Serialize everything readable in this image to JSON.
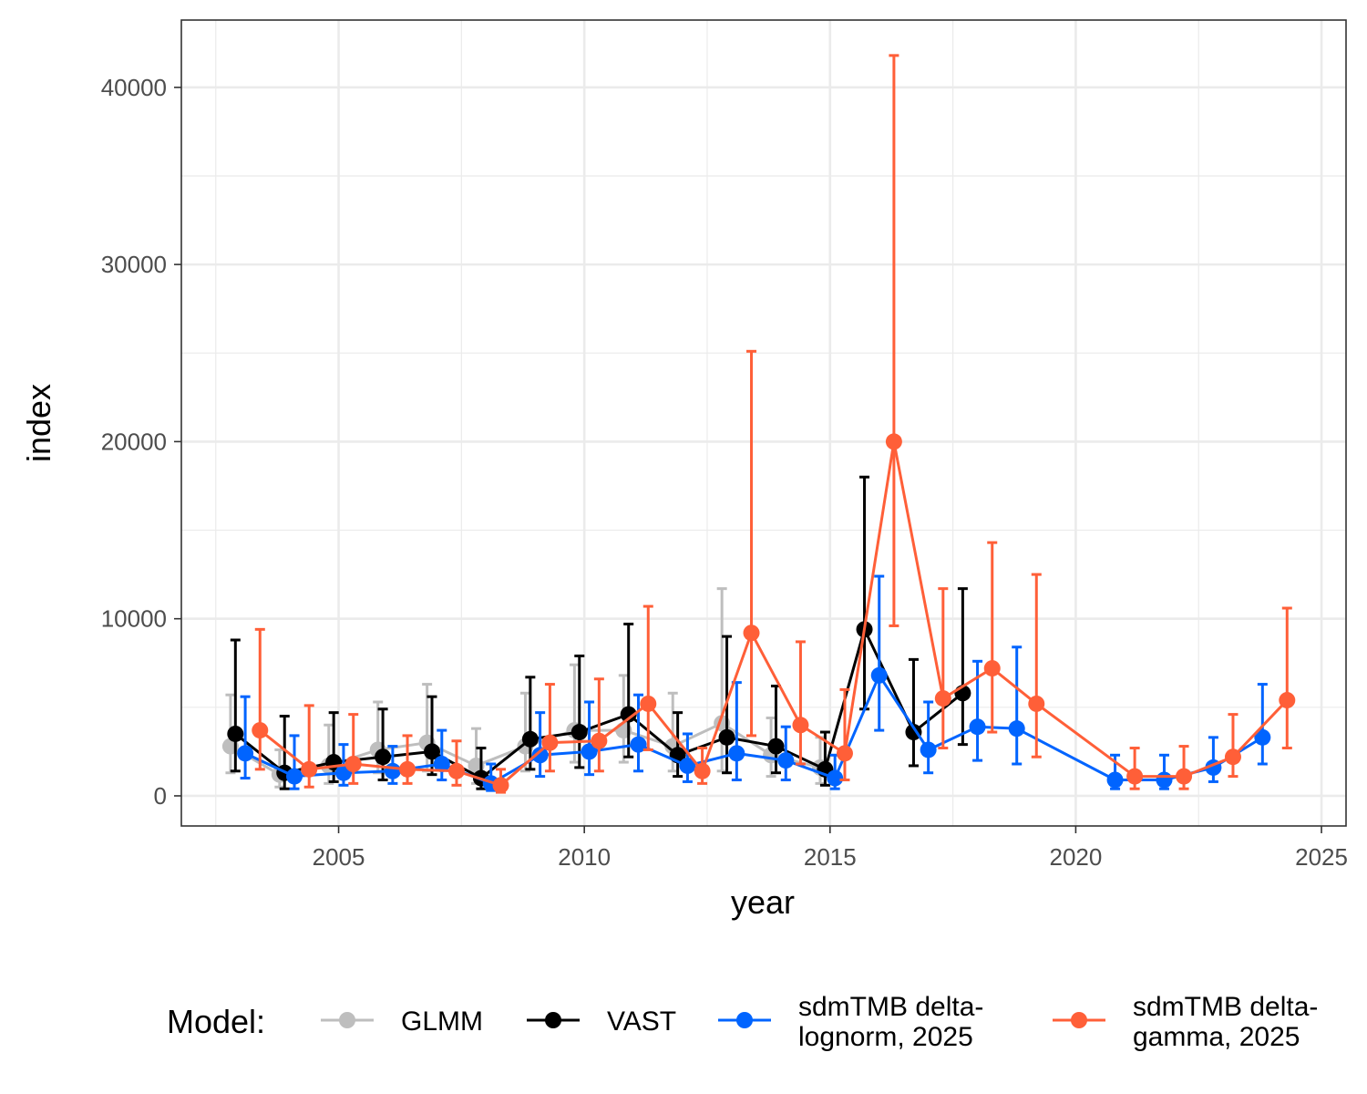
{
  "chart_data": {
    "type": "line",
    "xlabel": "year",
    "ylabel": "index",
    "xlim": [
      2001.8,
      2025.5
    ],
    "ylim": [
      -1700,
      43800
    ],
    "x_ticks": [
      2005,
      2010,
      2015,
      2020,
      2025
    ],
    "y_ticks": [
      0,
      10000,
      20000,
      30000,
      40000
    ],
    "grid": true,
    "legend_position": "bottom",
    "legend_title": "Model:",
    "series": [
      {
        "name": "GLMM",
        "color": "#bebebe",
        "x": [
          2002.8,
          2003.8,
          2004.8,
          2005.8,
          2006.8,
          2007.8,
          2008.8,
          2009.8,
          2010.8,
          2011.8,
          2012.8,
          2013.8,
          2014.8
        ],
        "y": [
          2800,
          1200,
          1700,
          2600,
          3000,
          1700,
          2800,
          3700,
          3700,
          2800,
          4100,
          2300,
          1600
        ],
        "lower": [
          1300,
          500,
          700,
          1300,
          1400,
          700,
          1400,
          1900,
          1900,
          1400,
          1400,
          1100,
          700
        ],
        "upper": [
          5700,
          2600,
          4000,
          5300,
          6300,
          3800,
          5800,
          7400,
          6800,
          5800,
          11700,
          4400,
          3300
        ]
      },
      {
        "name": "VAST",
        "color": "#000000",
        "x": [
          2002.9,
          2003.9,
          2004.9,
          2005.9,
          2006.9,
          2007.9,
          2008.9,
          2009.9,
          2010.9,
          2011.9,
          2012.9,
          2013.9,
          2014.9,
          2015.7,
          2016.7,
          2017.7
        ],
        "y": [
          3500,
          1300,
          1900,
          2200,
          2500,
          1000,
          3200,
          3600,
          4600,
          2300,
          3300,
          2800,
          1500,
          9400,
          3600,
          5800
        ],
        "lower": [
          1400,
          400,
          800,
          900,
          1200,
          400,
          1500,
          1600,
          2200,
          1100,
          1300,
          1300,
          600,
          4900,
          1700,
          2900
        ],
        "upper": [
          8800,
          4500,
          4700,
          4900,
          5600,
          2700,
          6700,
          7900,
          9700,
          4700,
          9000,
          6200,
          3600,
          18000,
          7700,
          11700
        ]
      },
      {
        "name": "sdmTMB delta-\nlognorm, 2025",
        "color": "#0064ff",
        "x": [
          2003.1,
          2004.1,
          2005.1,
          2006.1,
          2007.1,
          2008.1,
          2009.1,
          2010.1,
          2011.1,
          2012.1,
          2013.1,
          2014.1,
          2015.1,
          2016.0,
          2017.0,
          2018.0,
          2018.8,
          2020.8,
          2021.8,
          2022.8,
          2023.8
        ],
        "y": [
          2400,
          1100,
          1300,
          1400,
          1800,
          700,
          2300,
          2500,
          2900,
          1700,
          2400,
          2000,
          1000,
          6800,
          2600,
          3900,
          3800,
          900,
          900,
          1600,
          3300
        ],
        "lower": [
          1000,
          400,
          600,
          700,
          900,
          300,
          1100,
          1200,
          1400,
          800,
          900,
          900,
          400,
          3700,
          1300,
          2000,
          1800,
          400,
          400,
          800,
          1800
        ],
        "upper": [
          5600,
          3400,
          2900,
          2800,
          3700,
          1800,
          4700,
          5300,
          5700,
          3500,
          6400,
          3900,
          2300,
          12400,
          5300,
          7600,
          8400,
          2300,
          2300,
          3300,
          6300
        ]
      },
      {
        "name": "sdmTMB delta-\ngamma, 2025",
        "color": "#ff5f38",
        "x": [
          2003.4,
          2004.4,
          2005.3,
          2006.4,
          2007.4,
          2008.3,
          2009.3,
          2010.3,
          2011.3,
          2012.4,
          2013.4,
          2014.4,
          2015.3,
          2016.3,
          2017.3,
          2018.3,
          2019.2,
          2021.2,
          2022.2,
          2023.2,
          2024.3
        ],
        "y": [
          3700,
          1500,
          1800,
          1500,
          1400,
          600,
          3000,
          3100,
          5200,
          1400,
          9200,
          4000,
          2400,
          20000,
          5500,
          7200,
          5200,
          1100,
          1100,
          2200,
          5400
        ],
        "lower": [
          1500,
          500,
          700,
          700,
          600,
          200,
          1400,
          1400,
          2600,
          700,
          3400,
          1800,
          900,
          9600,
          2700,
          3600,
          2200,
          400,
          400,
          1100,
          2700
        ],
        "upper": [
          9400,
          5100,
          4600,
          3400,
          3100,
          1500,
          6300,
          6600,
          10700,
          2700,
          25100,
          8700,
          6000,
          41800,
          11700,
          14300,
          12500,
          2700,
          2800,
          4600,
          10600
        ]
      }
    ]
  }
}
